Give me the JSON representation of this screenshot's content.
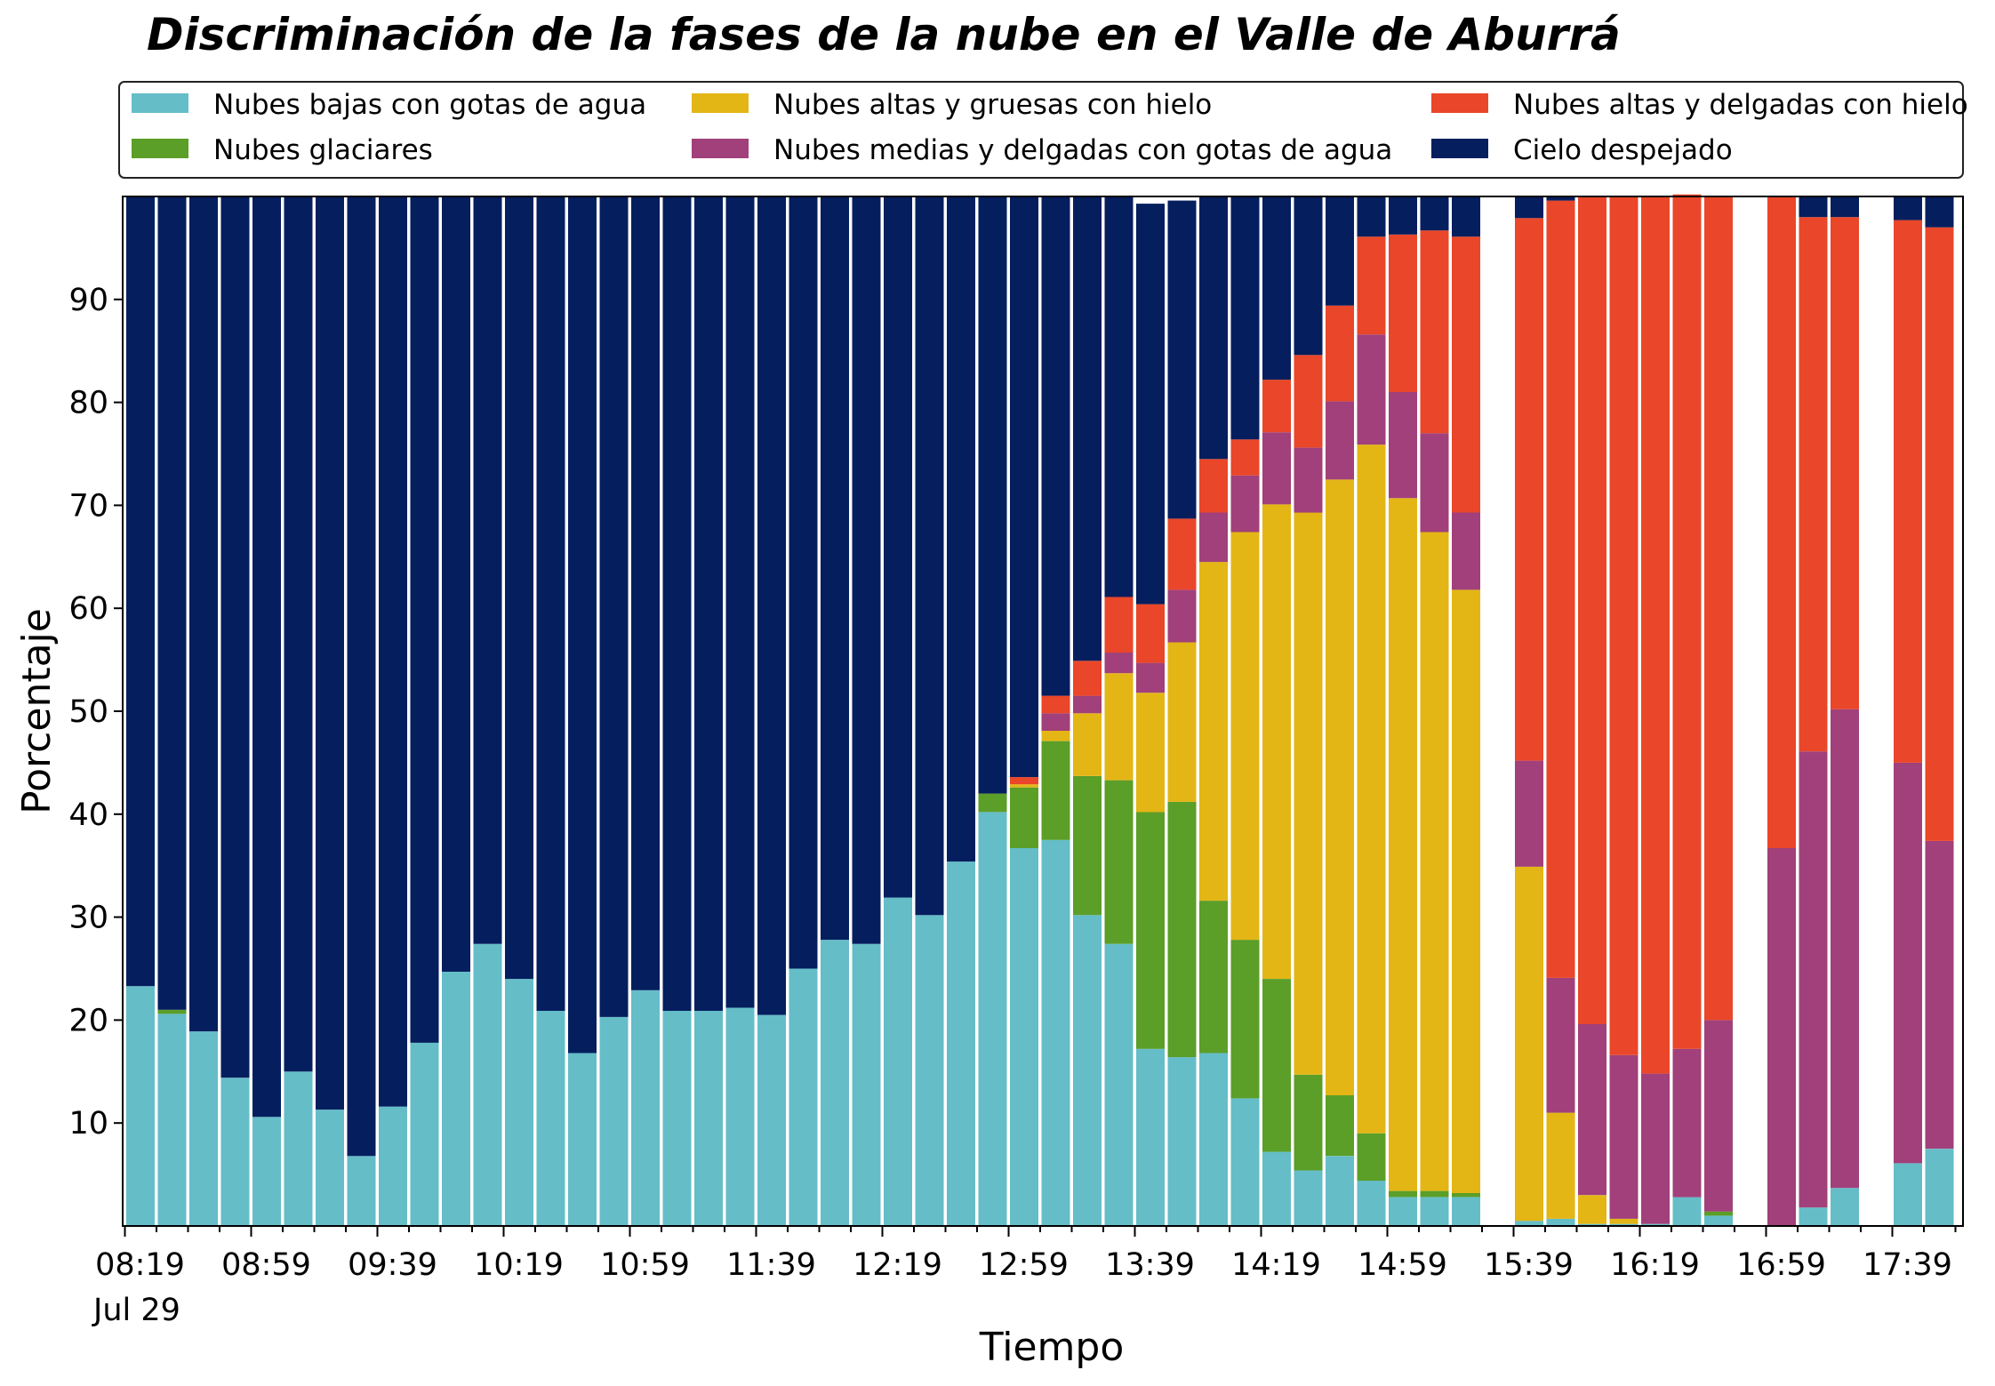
{
  "chart_data": {
    "type": "bar",
    "stacked": true,
    "title": "Discriminación de la fases de la nube en el Valle de Aburrá",
    "xlabel": "Tiempo",
    "ylabel": "Porcentaje",
    "ylim": [
      0,
      100
    ],
    "yticks": [
      10,
      20,
      30,
      40,
      50,
      60,
      70,
      80,
      90
    ],
    "legend_position": "top",
    "x_start": "08:19",
    "x_step_minutes": 10,
    "xtick_labels": [
      "08:19",
      "08:59",
      "09:39",
      "10:19",
      "10:59",
      "11:39",
      "12:19",
      "12:59",
      "13:39",
      "14:19",
      "14:59",
      "15:39",
      "16:19",
      "16:59",
      "17:39"
    ],
    "xtick_date": "Jul 29",
    "categories": [
      "08:19",
      "08:29",
      "08:39",
      "08:49",
      "08:59",
      "09:09",
      "09:19",
      "09:29",
      "09:39",
      "09:49",
      "09:59",
      "10:09",
      "10:19",
      "10:29",
      "10:39",
      "10:49",
      "10:59",
      "11:09",
      "11:19",
      "11:29",
      "11:39",
      "11:49",
      "11:59",
      "12:09",
      "12:19",
      "12:29",
      "12:39",
      "12:49",
      "12:59",
      "13:09",
      "13:19",
      "13:29",
      "13:39",
      "13:49",
      "13:59",
      "14:09",
      "14:19",
      "14:29",
      "14:39",
      "14:49",
      "14:59",
      "15:09",
      "15:19",
      "15:29",
      "15:39",
      "15:49",
      "15:59",
      "16:09",
      "16:19",
      "16:29",
      "16:39",
      "16:49",
      "16:59",
      "17:09",
      "17:19",
      "17:29",
      "17:39",
      "17:49"
    ],
    "series": [
      {
        "name": "Nubes bajas con gotas de agua",
        "color": "#65bdc8",
        "values": [
          23.3,
          20.6,
          18.9,
          14.4,
          10.6,
          15.0,
          11.3,
          6.8,
          11.6,
          17.8,
          24.7,
          27.4,
          24.0,
          20.9,
          16.8,
          20.3,
          22.9,
          20.9,
          20.9,
          21.2,
          20.5,
          25.0,
          27.8,
          27.4,
          31.9,
          30.2,
          35.4,
          40.2,
          36.7,
          37.5,
          30.2,
          27.4,
          17.2,
          16.4,
          16.8,
          12.4,
          7.2,
          5.4,
          6.8,
          4.4,
          2.8,
          2.8,
          2.8,
          null,
          0.5,
          0.7,
          0.2,
          0.2,
          0.2,
          2.8,
          1.0,
          null,
          0,
          1.8,
          3.7,
          null,
          6.1,
          7.5
        ]
      },
      {
        "name": "Nubes glaciares",
        "color": "#5b9e28",
        "values": [
          0,
          0.4,
          0,
          0,
          0,
          0,
          0,
          0,
          0,
          0,
          0,
          0,
          0,
          0,
          0,
          0,
          0,
          0,
          0,
          0,
          0,
          0,
          0,
          0,
          0,
          0,
          0,
          1.8,
          5.9,
          9.6,
          13.5,
          15.9,
          23.0,
          24.8,
          14.8,
          15.4,
          16.8,
          9.3,
          5.9,
          4.6,
          0.6,
          0.6,
          0.4,
          null,
          0,
          0,
          0,
          0,
          0,
          0,
          0.4,
          null,
          0,
          0,
          0,
          null,
          0,
          0
        ]
      },
      {
        "name": "Nubes altas y gruesas con hielo",
        "color": "#e3b616",
        "values": [
          0,
          0,
          0,
          0,
          0,
          0,
          0,
          0,
          0,
          0,
          0,
          0,
          0,
          0,
          0,
          0,
          0,
          0,
          0,
          0,
          0,
          0,
          0,
          0,
          0,
          0,
          0,
          0,
          0.3,
          1.0,
          6.1,
          10.4,
          11.6,
          15.5,
          32.9,
          39.6,
          46.1,
          54.6,
          59.8,
          66.9,
          67.3,
          64.0,
          58.6,
          null,
          34.4,
          10.3,
          2.8,
          0.5,
          0,
          0,
          0,
          null,
          0,
          0,
          0,
          null,
          0,
          0
        ]
      },
      {
        "name": "Nubes medias y delgadas con gotas de agua",
        "color": "#a1407a",
        "values": [
          0,
          0,
          0,
          0,
          0,
          0,
          0,
          0,
          0,
          0,
          0,
          0,
          0,
          0,
          0,
          0,
          0,
          0,
          0,
          0,
          0,
          0,
          0,
          0,
          0,
          0,
          0,
          0,
          0,
          1.7,
          1.7,
          2.0,
          2.9,
          5.1,
          4.8,
          5.5,
          7.0,
          6.3,
          7.6,
          10.7,
          10.3,
          9.6,
          7.5,
          null,
          10.3,
          13.1,
          16.6,
          15.9,
          14.6,
          14.4,
          18.6,
          null,
          36.7,
          44.3,
          46.5,
          null,
          38.9,
          29.9
        ]
      },
      {
        "name": "Nubes altas y delgadas con hielo",
        "color": "#ea4629",
        "values": [
          0,
          0,
          0,
          0,
          0,
          0,
          0,
          0,
          0,
          0,
          0,
          0,
          0,
          0,
          0,
          0,
          0,
          0,
          0,
          0,
          0,
          0,
          0,
          0,
          0,
          0,
          0,
          0,
          0.7,
          1.7,
          3.4,
          5.4,
          5.7,
          6.9,
          5.2,
          3.5,
          5.1,
          9.0,
          9.3,
          9.5,
          15.3,
          19.7,
          26.8,
          null,
          52.7,
          75.5,
          80.4,
          83.4,
          85.2,
          83.0,
          80.0,
          null,
          63.3,
          51.9,
          47.8,
          null,
          52.7,
          59.6
        ]
      },
      {
        "name": "Cielo despejado",
        "color": "#051e5e",
        "values": [
          76.7,
          79.0,
          81.1,
          85.6,
          89.4,
          85.0,
          88.7,
          93.2,
          88.4,
          82.2,
          75.3,
          72.6,
          76.0,
          79.1,
          83.2,
          79.7,
          77.1,
          79.1,
          79.1,
          78.8,
          79.5,
          75.0,
          72.2,
          72.6,
          68.1,
          69.8,
          64.6,
          58.0,
          56.4,
          48.5,
          45.1,
          38.9,
          38.9,
          30.9,
          25.5,
          23.6,
          17.8,
          15.4,
          10.6,
          3.9,
          3.7,
          3.3,
          3.9,
          null,
          2.1,
          0.4,
          0,
          0,
          0,
          0,
          0,
          null,
          0,
          2.0,
          2.0,
          null,
          2.3,
          3.0
        ]
      }
    ]
  }
}
